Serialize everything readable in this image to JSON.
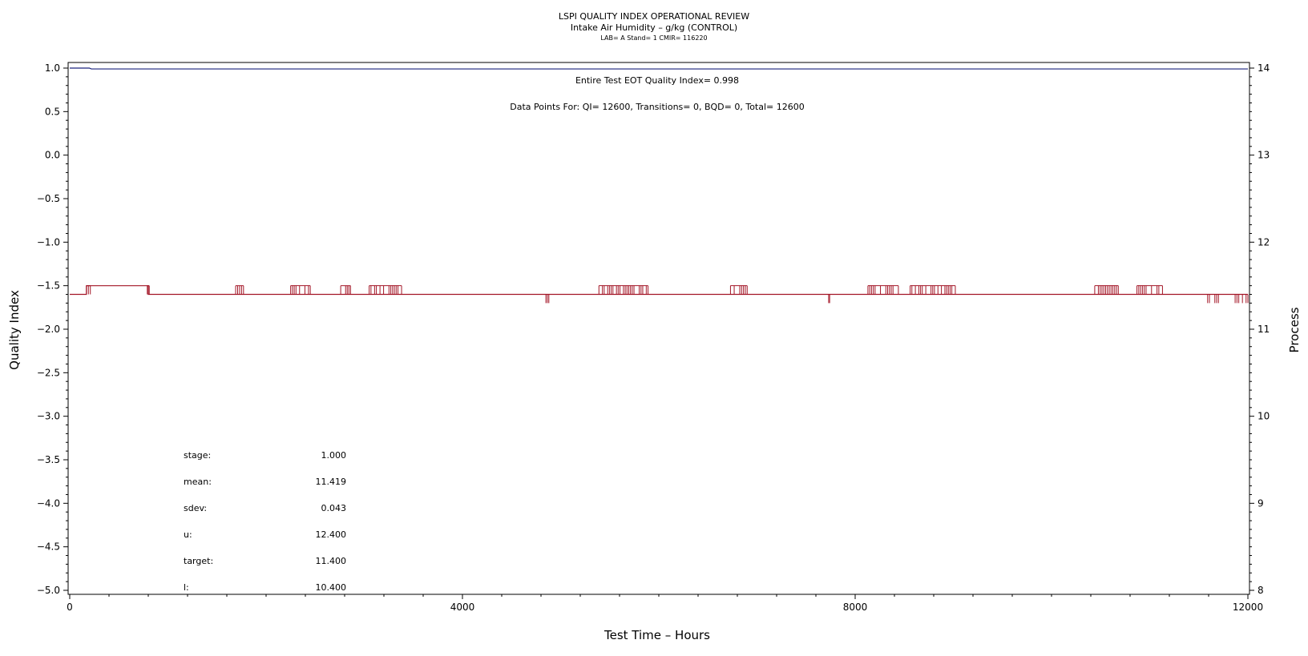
{
  "header": {
    "title": "LSPI QUALITY INDEX OPERATIONAL REVIEW",
    "subtitle": "Intake Air Humidity – g/kg (CONTROL)",
    "info": "LAB= A Stand= 1 CMIR= 116220"
  },
  "annotations": {
    "quality_index": "Entire Test EOT Quality Index=   0.998",
    "data_points": "Data Points For: QI= 12600, Transitions=     0, BQD=     0, Total= 12600"
  },
  "stats": [
    {
      "label": "stage:",
      "value": "1.000"
    },
    {
      "label": "mean:",
      "value": "11.419"
    },
    {
      "label": "sdev:",
      "value": "0.043"
    },
    {
      "label": "u:",
      "value": "12.400"
    },
    {
      "label": "target:",
      "value": "11.400"
    },
    {
      "label": "l:",
      "value": "10.400"
    }
  ],
  "colors": {
    "quality_index_line": "#1a237e",
    "process_line": "#a31526",
    "axis": "#000000"
  },
  "chart_data": {
    "type": "line",
    "xlabel": "Test Time – Hours",
    "ylabel": "Quality Index",
    "y2label": "Process",
    "xlim": [
      0,
      12000
    ],
    "ylim": [
      -5.0,
      1.0
    ],
    "y2lim": [
      8,
      14
    ],
    "x_ticks": [
      0,
      4000,
      8000,
      12000
    ],
    "y_ticks": [
      1.0,
      0.5,
      0.0,
      -0.5,
      -1.0,
      -1.5,
      -2.0,
      -2.5,
      -3.0,
      -3.5,
      -4.0,
      -4.5,
      -5.0
    ],
    "y_tick_labels": [
      "1.0",
      "0.5",
      "0.0",
      "−0.5",
      "−1.0",
      "−1.5",
      "−2.0",
      "−2.5",
      "−3.0",
      "−3.5",
      "−4.0",
      "−4.5",
      "−5.0"
    ],
    "y2_ticks": [
      8,
      9,
      10,
      11,
      12,
      13,
      14
    ],
    "grid": false,
    "series": [
      {
        "axis": "left",
        "x": [
          0,
          200,
          220,
          12000
        ],
        "y": [
          1.0,
          1.0,
          0.99,
          0.99
        ]
      },
      {
        "axis": "right",
        "baseline": 11.4,
        "x": [
          0,
          170,
          170,
          800,
          800,
          12000
        ],
        "y": [
          11.4,
          11.4,
          11.5,
          11.5,
          11.4,
          11.4
        ],
        "spike_clusters": [
          {
            "start": 170,
            "end": 210,
            "value": 11.5
          },
          {
            "start": 790,
            "end": 810,
            "value": 11.5
          },
          {
            "start": 1690,
            "end": 1770,
            "value": 11.5
          },
          {
            "start": 2250,
            "end": 2450,
            "value": 11.5
          },
          {
            "start": 2760,
            "end": 2860,
            "value": 11.5
          },
          {
            "start": 3050,
            "end": 3380,
            "value": 11.5
          },
          {
            "start": 4850,
            "end": 4880,
            "value": 11.3
          },
          {
            "start": 5390,
            "end": 5890,
            "value": 11.5
          },
          {
            "start": 6730,
            "end": 6900,
            "value": 11.5
          },
          {
            "start": 7730,
            "end": 7740,
            "value": 11.3
          },
          {
            "start": 8130,
            "end": 8440,
            "value": 11.5
          },
          {
            "start": 8560,
            "end": 9020,
            "value": 11.5
          },
          {
            "start": 10440,
            "end": 10680,
            "value": 11.5
          },
          {
            "start": 10870,
            "end": 11130,
            "value": 11.5
          },
          {
            "start": 11590,
            "end": 11700,
            "value": 11.3
          },
          {
            "start": 11870,
            "end": 12000,
            "value": 11.3
          }
        ]
      }
    ]
  }
}
